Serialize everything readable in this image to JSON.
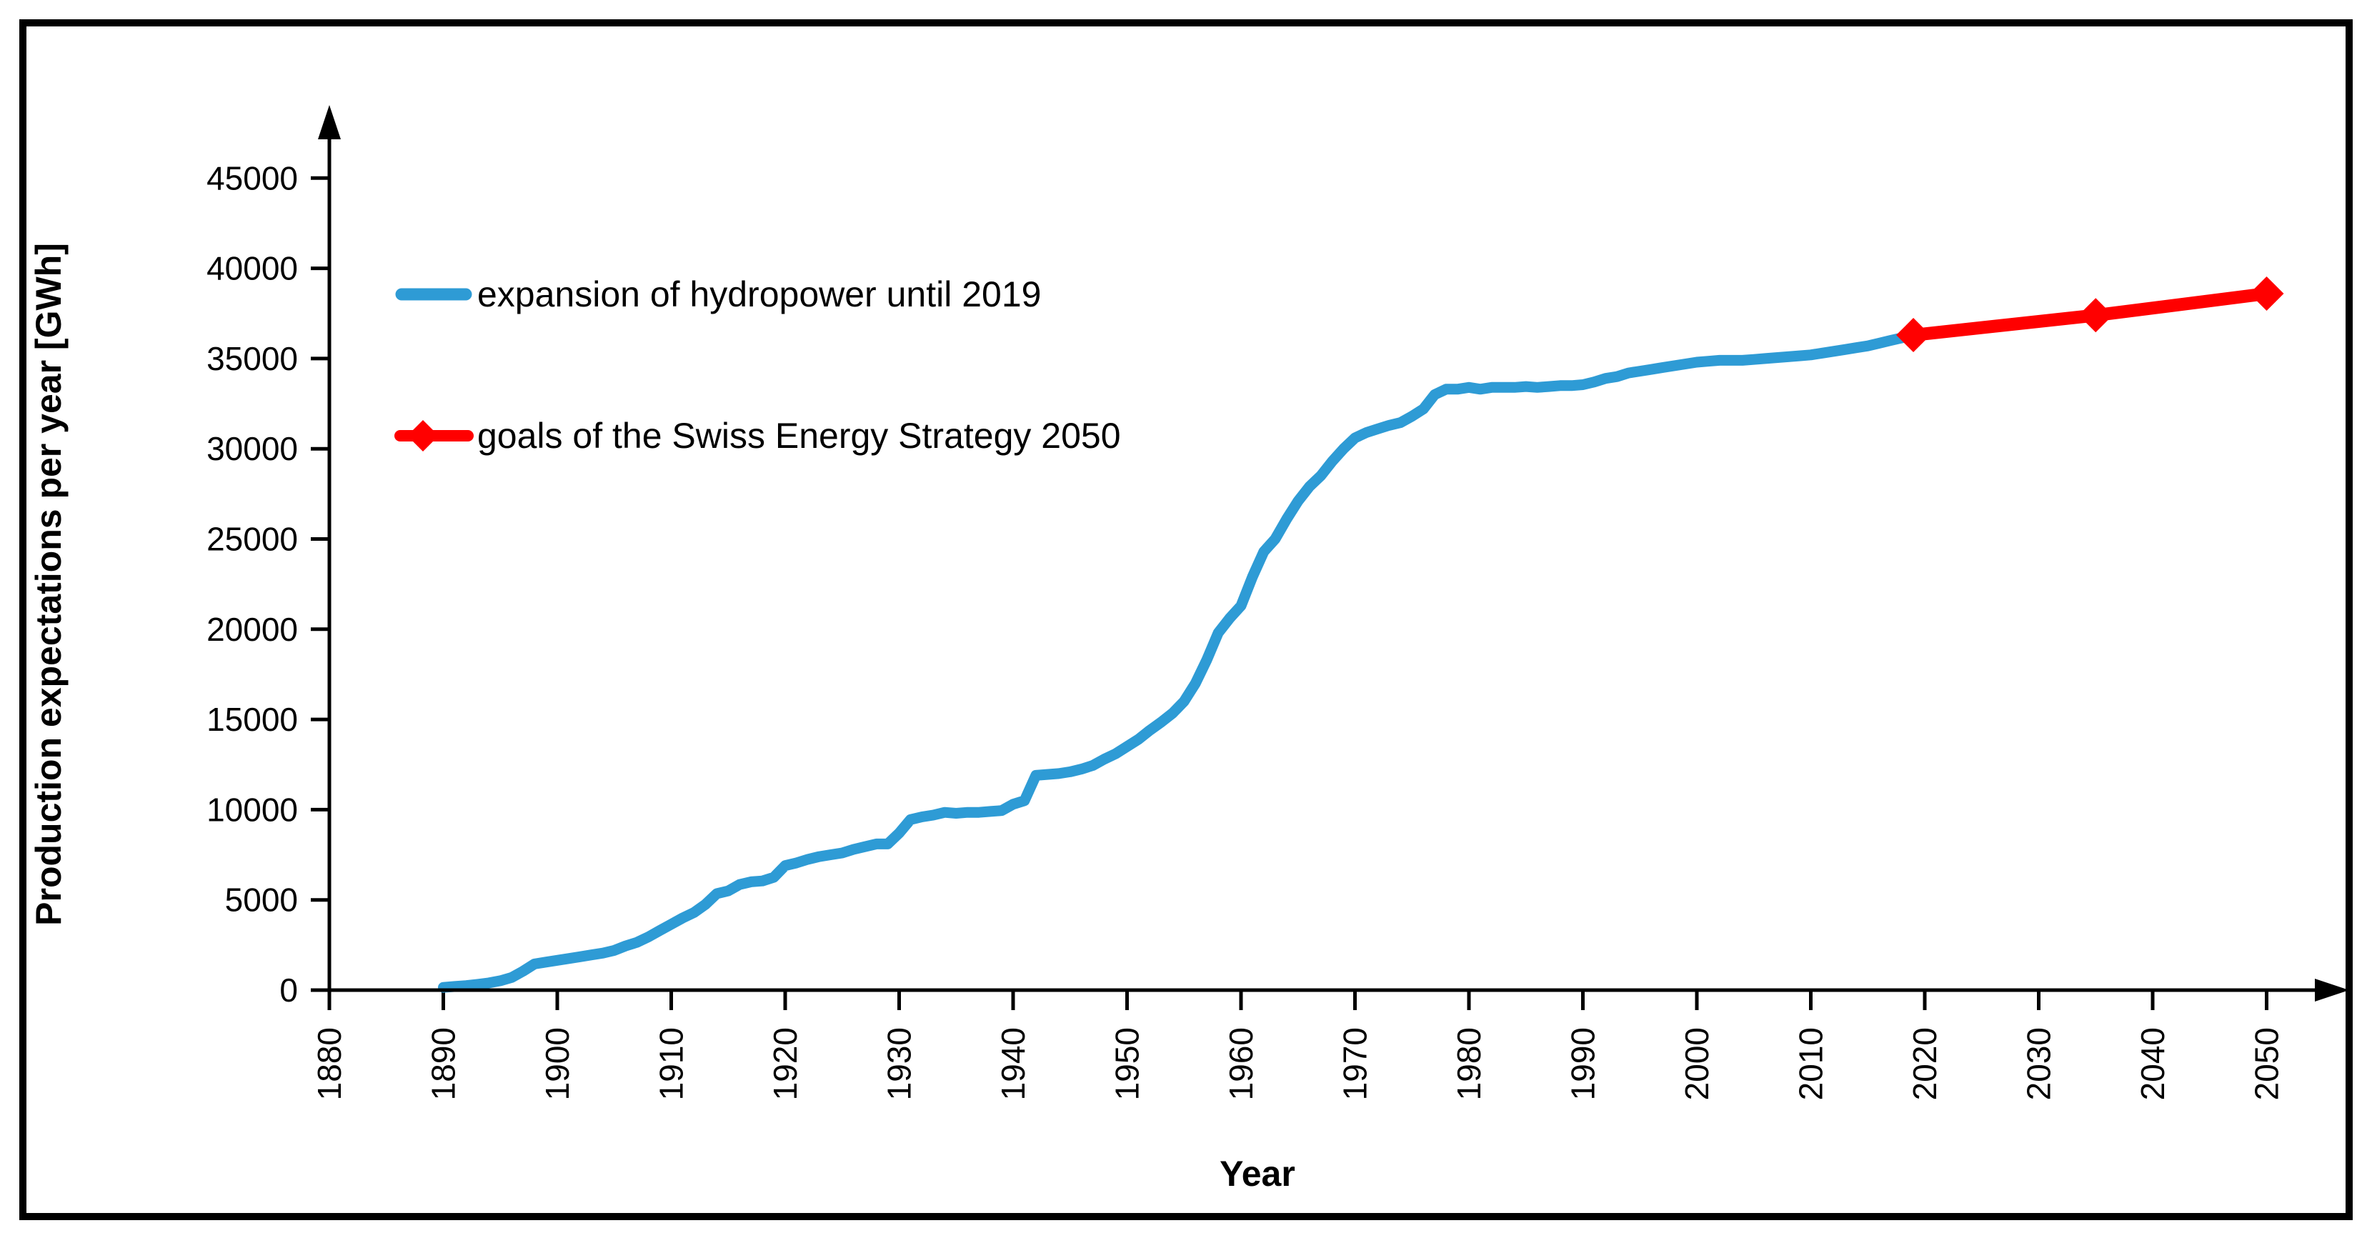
{
  "figure": {
    "background": "#ffffff",
    "border_color": "#000000",
    "text_color": "#000000"
  },
  "chart_data": {
    "type": "line",
    "title": "",
    "xlabel": "Year",
    "ylabel": "Production expectations per year [GWh]",
    "x_ticks": [
      1880,
      1890,
      1900,
      1910,
      1920,
      1930,
      1940,
      1950,
      1960,
      1970,
      1980,
      1990,
      2000,
      2010,
      2020,
      2030,
      2040,
      2050
    ],
    "y_ticks": [
      0,
      5000,
      10000,
      15000,
      20000,
      25000,
      30000,
      35000,
      40000,
      45000
    ],
    "xlim": [
      1880,
      2056
    ],
    "ylim": [
      0,
      47000
    ],
    "grid": false,
    "legend_position": "upper-left-inside",
    "x_tick_rotation": -90,
    "series": [
      {
        "name": "expansion of hydropower until 2019",
        "color": "#2E9BD5",
        "marker": "none",
        "line_width": 15,
        "x": [
          1890,
          1891,
          1892,
          1893,
          1894,
          1895,
          1896,
          1897,
          1898,
          1899,
          1900,
          1901,
          1902,
          1903,
          1904,
          1905,
          1906,
          1907,
          1908,
          1909,
          1910,
          1911,
          1912,
          1913,
          1914,
          1915,
          1916,
          1917,
          1918,
          1919,
          1920,
          1921,
          1922,
          1923,
          1924,
          1925,
          1926,
          1927,
          1928,
          1929,
          1930,
          1931,
          1932,
          1933,
          1934,
          1935,
          1936,
          1937,
          1938,
          1939,
          1940,
          1941,
          1942,
          1943,
          1944,
          1945,
          1946,
          1947,
          1948,
          1949,
          1950,
          1951,
          1952,
          1953,
          1954,
          1955,
          1956,
          1957,
          1958,
          1959,
          1960,
          1961,
          1962,
          1963,
          1964,
          1965,
          1966,
          1967,
          1968,
          1969,
          1970,
          1971,
          1972,
          1973,
          1974,
          1975,
          1976,
          1977,
          1978,
          1979,
          1980,
          1981,
          1982,
          1983,
          1984,
          1985,
          1986,
          1987,
          1988,
          1989,
          1990,
          1991,
          1992,
          1993,
          1994,
          1995,
          1996,
          1997,
          1998,
          1999,
          2000,
          2001,
          2002,
          2003,
          2004,
          2005,
          2006,
          2007,
          2008,
          2009,
          2010,
          2011,
          2012,
          2013,
          2014,
          2015,
          2016,
          2017,
          2018,
          2019
        ],
        "y": [
          150,
          200,
          250,
          320,
          400,
          520,
          700,
          1050,
          1450,
          1550,
          1650,
          1750,
          1850,
          1950,
          2050,
          2200,
          2450,
          2650,
          2950,
          3300,
          3650,
          4000,
          4300,
          4750,
          5350,
          5500,
          5850,
          6000,
          6050,
          6250,
          6900,
          7050,
          7250,
          7400,
          7500,
          7600,
          7800,
          7950,
          8100,
          8100,
          8700,
          9450,
          9600,
          9700,
          9850,
          9800,
          9850,
          9850,
          9900,
          9950,
          10300,
          10500,
          11900,
          11950,
          12000,
          12100,
          12250,
          12450,
          12800,
          13100,
          13500,
          13900,
          14400,
          14850,
          15350,
          16000,
          17000,
          18300,
          19800,
          20600,
          21300,
          22900,
          24300,
          25000,
          26100,
          27100,
          27900,
          28500,
          29300,
          30000,
          30600,
          30900,
          31100,
          31300,
          31450,
          31800,
          32200,
          33000,
          33300,
          33300,
          33400,
          33300,
          33400,
          33400,
          33400,
          33450,
          33400,
          33450,
          33500,
          33500,
          33550,
          33700,
          33900,
          34000,
          34200,
          34300,
          34400,
          34500,
          34600,
          34700,
          34800,
          34850,
          34900,
          34900,
          34900,
          34950,
          35000,
          35050,
          35100,
          35150,
          35200,
          35300,
          35400,
          35500,
          35600,
          35700,
          35850,
          36000,
          36150,
          36300
        ]
      },
      {
        "name": "goals of the Swiss Energy Strategy 2050",
        "color": "#FF0000",
        "marker": "diamond",
        "line_width": 18,
        "x": [
          2019,
          2035,
          2050
        ],
        "y": [
          36300,
          37400,
          38600
        ]
      }
    ]
  }
}
